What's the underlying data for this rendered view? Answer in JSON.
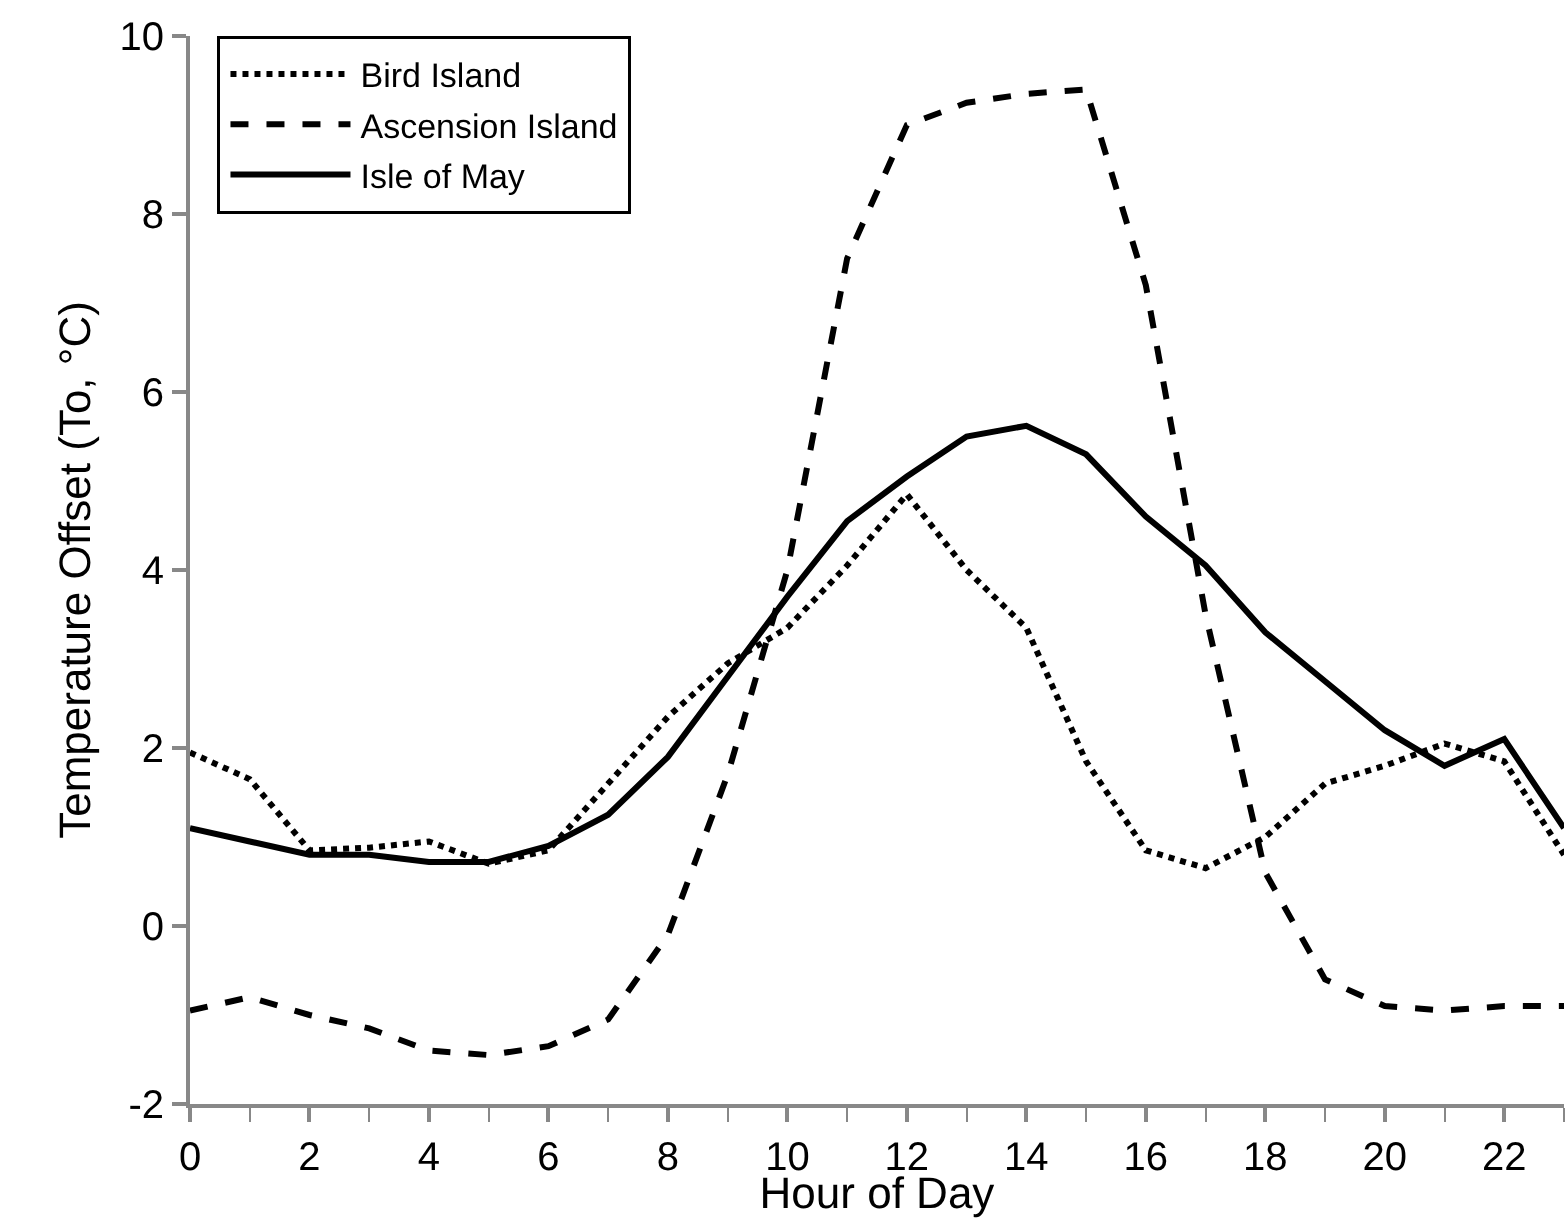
{
  "chart_data": {
    "type": "line",
    "xlabel": "Hour of Day",
    "ylabel": "Temperature Offset (To, °C)",
    "x": [
      0,
      1,
      2,
      3,
      4,
      5,
      6,
      7,
      8,
      9,
      10,
      11,
      12,
      13,
      14,
      15,
      16,
      17,
      18,
      19,
      20,
      21,
      22,
      23
    ],
    "series": [
      {
        "name": "Bird Island",
        "color": "#000000",
        "line_style": "dotted",
        "values": [
          1.95,
          1.65,
          0.85,
          0.88,
          0.95,
          0.7,
          0.85,
          1.6,
          2.35,
          2.95,
          3.35,
          4.05,
          4.85,
          4.0,
          3.35,
          1.85,
          0.85,
          0.65,
          1.0,
          1.6,
          1.8,
          2.05,
          1.85,
          0.8
        ]
      },
      {
        "name": "Ascension Island",
        "color": "#000000",
        "line_style": "dashed",
        "values": [
          -0.95,
          -0.8,
          -1.0,
          -1.15,
          -1.4,
          -1.45,
          -1.35,
          -1.05,
          -0.1,
          1.7,
          4.0,
          7.5,
          9.0,
          9.25,
          9.35,
          9.4,
          7.2,
          3.5,
          0.6,
          -0.6,
          -0.9,
          -0.95,
          -0.9,
          -0.9
        ]
      },
      {
        "name": "Isle of May",
        "color": "#000000",
        "line_style": "solid",
        "values": [
          1.1,
          0.95,
          0.8,
          0.8,
          0.72,
          0.72,
          0.9,
          1.25,
          1.9,
          2.8,
          3.7,
          4.55,
          5.05,
          5.5,
          5.62,
          5.3,
          4.6,
          4.05,
          3.3,
          2.75,
          2.2,
          1.8,
          2.1,
          1.1
        ]
      }
    ],
    "xlim": [
      0,
      23
    ],
    "xticks": [
      0,
      2,
      4,
      6,
      8,
      10,
      12,
      14,
      16,
      18,
      20,
      22
    ],
    "ylim": [
      -2,
      10
    ],
    "yticks": [
      -2,
      0,
      2,
      4,
      6,
      8,
      10
    ],
    "legend": "top left",
    "marker": "none"
  }
}
